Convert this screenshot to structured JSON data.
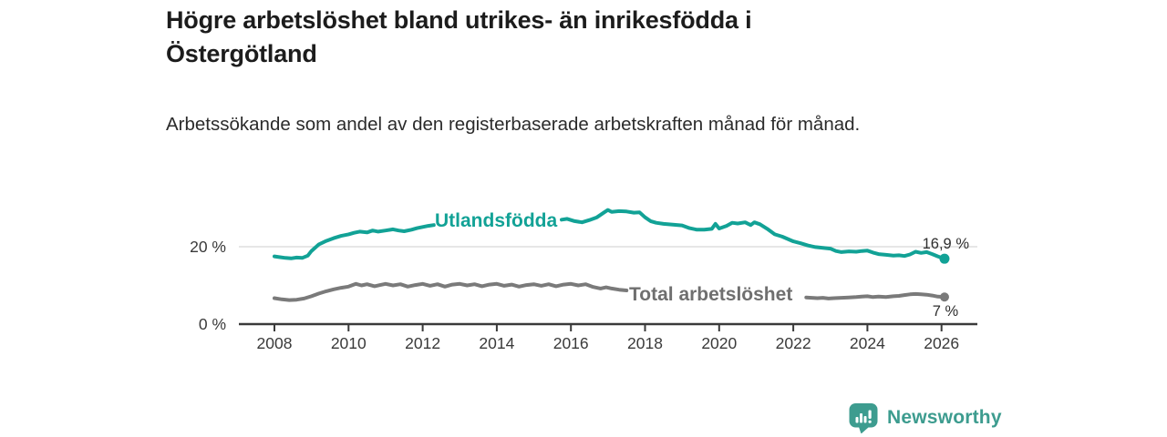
{
  "header": {
    "title": "Högre arbetslöshet bland utrikes- än inrikesfödda i Östergötland",
    "subtitle": "Arbetssökande som andel av den registerbaserade arbetskraften månad för månad."
  },
  "footer": {
    "brand": "Newsworthy",
    "brand_color": "#3d9c8f",
    "logo_icon": "speech-bubble-bar-chart-icon"
  },
  "chart_data": {
    "type": "line",
    "unit": "%",
    "x_range_years": [
      2007,
      2027.5
    ],
    "ylim": [
      0,
      32
    ],
    "grid": "single-horizontal-gridline-at-20",
    "legend_position": "inline-labels-on-lines",
    "x_ticks": [
      {
        "value": 2008,
        "label": "2008"
      },
      {
        "value": 2010,
        "label": "2010"
      },
      {
        "value": 2012,
        "label": "2012"
      },
      {
        "value": 2014,
        "label": "2014"
      },
      {
        "value": 2016,
        "label": "2016"
      },
      {
        "value": 2018,
        "label": "2018"
      },
      {
        "value": 2020,
        "label": "2020"
      },
      {
        "value": 2022,
        "label": "2022"
      },
      {
        "value": 2024,
        "label": "2024"
      },
      {
        "value": 2026,
        "label": "2026"
      }
    ],
    "y_ticks": [
      {
        "value": 20,
        "label": "20 %",
        "gridline": true
      },
      {
        "value": 0,
        "label": "0 %",
        "gridline": false
      }
    ],
    "axis_color": "#3a3a3a",
    "gridline_color": "#d7d7d7",
    "value_label_color": "#2e2e2e",
    "series": [
      {
        "name": "Utlandsfödda",
        "slug": "utlandsfodda",
        "color": "#12a296",
        "end_label": "16,9 %",
        "end_value": 16.9,
        "end_x": 2026.08,
        "points": [
          [
            2008.0,
            17.5
          ],
          [
            2008.15,
            17.3
          ],
          [
            2008.3,
            17.1
          ],
          [
            2008.45,
            17.0
          ],
          [
            2008.6,
            17.2
          ],
          [
            2008.75,
            17.1
          ],
          [
            2008.9,
            17.7
          ],
          [
            2009.0,
            18.9
          ],
          [
            2009.2,
            20.6
          ],
          [
            2009.4,
            21.5
          ],
          [
            2009.6,
            22.2
          ],
          [
            2009.8,
            22.8
          ],
          [
            2010.0,
            23.2
          ],
          [
            2010.15,
            23.6
          ],
          [
            2010.3,
            23.9
          ],
          [
            2010.5,
            23.7
          ],
          [
            2010.65,
            24.2
          ],
          [
            2010.8,
            23.9
          ],
          [
            2011.0,
            24.2
          ],
          [
            2011.2,
            24.5
          ],
          [
            2011.35,
            24.2
          ],
          [
            2011.5,
            24.0
          ],
          [
            2011.7,
            24.4
          ],
          [
            2011.85,
            24.8
          ],
          [
            2012.0,
            25.1
          ],
          [
            2012.15,
            25.4
          ],
          [
            2012.3,
            25.6
          ],
          null,
          [
            2015.75,
            27.0
          ],
          [
            2015.9,
            27.2
          ],
          [
            2016.1,
            26.6
          ],
          [
            2016.3,
            26.3
          ],
          [
            2016.5,
            26.9
          ],
          [
            2016.7,
            27.6
          ],
          [
            2016.9,
            28.9
          ],
          [
            2017.0,
            29.5
          ],
          [
            2017.1,
            29.0
          ],
          [
            2017.3,
            29.2
          ],
          [
            2017.5,
            29.1
          ],
          [
            2017.7,
            28.8
          ],
          [
            2017.85,
            28.9
          ],
          [
            2018.0,
            27.6
          ],
          [
            2018.15,
            26.6
          ],
          [
            2018.3,
            26.2
          ],
          [
            2018.5,
            25.9
          ],
          [
            2018.75,
            25.7
          ],
          [
            2019.0,
            25.5
          ],
          [
            2019.2,
            24.8
          ],
          [
            2019.4,
            24.4
          ],
          [
            2019.6,
            24.4
          ],
          [
            2019.8,
            24.6
          ],
          [
            2019.9,
            25.9
          ],
          [
            2020.0,
            24.7
          ],
          [
            2020.2,
            25.4
          ],
          [
            2020.35,
            26.2
          ],
          [
            2020.5,
            26.0
          ],
          [
            2020.7,
            26.3
          ],
          [
            2020.85,
            25.6
          ],
          [
            2020.95,
            26.3
          ],
          [
            2021.1,
            25.8
          ],
          [
            2021.3,
            24.6
          ],
          [
            2021.5,
            23.2
          ],
          [
            2021.7,
            22.6
          ],
          [
            2021.85,
            22.0
          ],
          [
            2022.0,
            21.4
          ],
          [
            2022.2,
            20.9
          ],
          [
            2022.4,
            20.3
          ],
          [
            2022.6,
            19.9
          ],
          [
            2022.8,
            19.7
          ],
          [
            2023.0,
            19.5
          ],
          [
            2023.15,
            18.9
          ],
          [
            2023.3,
            18.6
          ],
          [
            2023.5,
            18.8
          ],
          [
            2023.7,
            18.7
          ],
          [
            2023.85,
            18.9
          ],
          [
            2024.0,
            19.0
          ],
          [
            2024.15,
            18.5
          ],
          [
            2024.3,
            18.1
          ],
          [
            2024.5,
            17.9
          ],
          [
            2024.7,
            17.7
          ],
          [
            2024.85,
            17.8
          ],
          [
            2025.0,
            17.6
          ],
          [
            2025.15,
            18.0
          ],
          [
            2025.3,
            18.7
          ],
          [
            2025.45,
            18.4
          ],
          [
            2025.6,
            18.6
          ],
          [
            2025.75,
            18.1
          ],
          [
            2025.9,
            17.5
          ],
          [
            2026.08,
            16.9
          ]
        ]
      },
      {
        "name": "Total arbetslöshet",
        "slug": "total-arbetsloshet",
        "color": "#7a7a7a",
        "label_color": "#6f6f6f",
        "end_label": "7 %",
        "end_value": 7.0,
        "end_x": 2026.08,
        "points": [
          [
            2008.0,
            6.7
          ],
          [
            2008.2,
            6.4
          ],
          [
            2008.4,
            6.2
          ],
          [
            2008.6,
            6.3
          ],
          [
            2008.8,
            6.6
          ],
          [
            2009.0,
            7.2
          ],
          [
            2009.2,
            7.9
          ],
          [
            2009.4,
            8.5
          ],
          [
            2009.6,
            9.0
          ],
          [
            2009.8,
            9.4
          ],
          [
            2010.0,
            9.7
          ],
          [
            2010.2,
            10.4
          ],
          [
            2010.35,
            10.0
          ],
          [
            2010.5,
            10.3
          ],
          [
            2010.7,
            9.8
          ],
          [
            2010.85,
            10.1
          ],
          [
            2011.0,
            10.4
          ],
          [
            2011.2,
            10.0
          ],
          [
            2011.4,
            10.3
          ],
          [
            2011.6,
            9.7
          ],
          [
            2011.8,
            10.1
          ],
          [
            2012.0,
            10.4
          ],
          [
            2012.2,
            9.9
          ],
          [
            2012.4,
            10.3
          ],
          [
            2012.6,
            9.7
          ],
          [
            2012.8,
            10.2
          ],
          [
            2013.0,
            10.4
          ],
          [
            2013.2,
            10.0
          ],
          [
            2013.4,
            10.3
          ],
          [
            2013.6,
            9.8
          ],
          [
            2013.8,
            10.2
          ],
          [
            2014.0,
            10.4
          ],
          [
            2014.2,
            9.9
          ],
          [
            2014.4,
            10.2
          ],
          [
            2014.6,
            9.7
          ],
          [
            2014.8,
            10.1
          ],
          [
            2015.0,
            10.3
          ],
          [
            2015.2,
            9.9
          ],
          [
            2015.4,
            10.3
          ],
          [
            2015.6,
            9.8
          ],
          [
            2015.8,
            10.2
          ],
          [
            2016.0,
            10.4
          ],
          [
            2016.2,
            10.0
          ],
          [
            2016.4,
            10.3
          ],
          [
            2016.6,
            9.6
          ],
          [
            2016.8,
            9.2
          ],
          [
            2016.95,
            9.5
          ],
          [
            2017.1,
            9.2
          ],
          [
            2017.3,
            8.9
          ],
          [
            2017.5,
            8.7
          ],
          null,
          [
            2022.35,
            6.9
          ],
          [
            2022.5,
            6.8
          ],
          [
            2022.65,
            6.7
          ],
          [
            2022.8,
            6.8
          ],
          [
            2022.95,
            6.6
          ],
          [
            2023.1,
            6.7
          ],
          [
            2023.3,
            6.8
          ],
          [
            2023.5,
            6.9
          ],
          [
            2023.7,
            7.0
          ],
          [
            2023.85,
            7.1
          ],
          [
            2024.0,
            7.2
          ],
          [
            2024.15,
            7.0
          ],
          [
            2024.3,
            7.1
          ],
          [
            2024.5,
            7.0
          ],
          [
            2024.7,
            7.2
          ],
          [
            2024.85,
            7.3
          ],
          [
            2025.0,
            7.5
          ],
          [
            2025.15,
            7.7
          ],
          [
            2025.3,
            7.8
          ],
          [
            2025.45,
            7.7
          ],
          [
            2025.6,
            7.6
          ],
          [
            2025.75,
            7.4
          ],
          [
            2025.9,
            7.1
          ],
          [
            2026.08,
            7.0
          ]
        ]
      }
    ]
  }
}
